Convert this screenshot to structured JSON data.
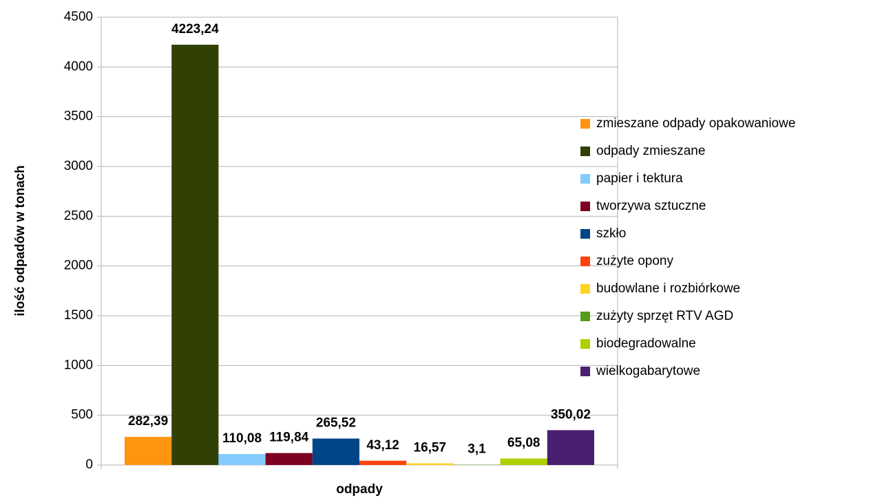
{
  "chart_data": {
    "type": "bar",
    "x_label": "odpady",
    "y_label": "ilość odpadów w tonach",
    "ylim": [
      0,
      4500
    ],
    "yticks": [
      0,
      500,
      1000,
      1500,
      2000,
      2500,
      3000,
      3500,
      4000,
      4500
    ],
    "grid": true,
    "legend": "right",
    "series": [
      {
        "name": "zmieszane odpady opakowaniowe",
        "color": "#ff950e",
        "values": [
          282.39
        ],
        "value_labels": [
          "282,39"
        ]
      },
      {
        "name": "odpady zmieszane",
        "color": "#314004",
        "values": [
          4223.24
        ],
        "value_labels": [
          "4223,24"
        ]
      },
      {
        "name": "papier i tektura",
        "color": "#83caff",
        "values": [
          110.08
        ],
        "value_labels": [
          "110,08"
        ]
      },
      {
        "name": "tworzywa sztuczne",
        "color": "#7e0021",
        "values": [
          119.84
        ],
        "value_labels": [
          "119,84"
        ]
      },
      {
        "name": "szkło",
        "color": "#004586",
        "values": [
          265.52
        ],
        "value_labels": [
          "265,52"
        ]
      },
      {
        "name": "zużyte opony",
        "color": "#ff420e",
        "values": [
          43.12
        ],
        "value_labels": [
          "43,12"
        ]
      },
      {
        "name": "budowlane i rozbiórkowe",
        "color": "#ffd320",
        "values": [
          16.57
        ],
        "value_labels": [
          "16,57"
        ]
      },
      {
        "name": "zużyty sprzęt RTV AGD",
        "color": "#579d1c",
        "values": [
          3.1
        ],
        "value_labels": [
          "3,1"
        ]
      },
      {
        "name": "biodegradowalne",
        "color": "#aecf00",
        "values": [
          65.08
        ],
        "value_labels": [
          "65,08"
        ]
      },
      {
        "name": "wielkogabarytowe",
        "color": "#4b1f6f",
        "values": [
          350.02
        ],
        "value_labels": [
          "350,02"
        ]
      }
    ]
  }
}
